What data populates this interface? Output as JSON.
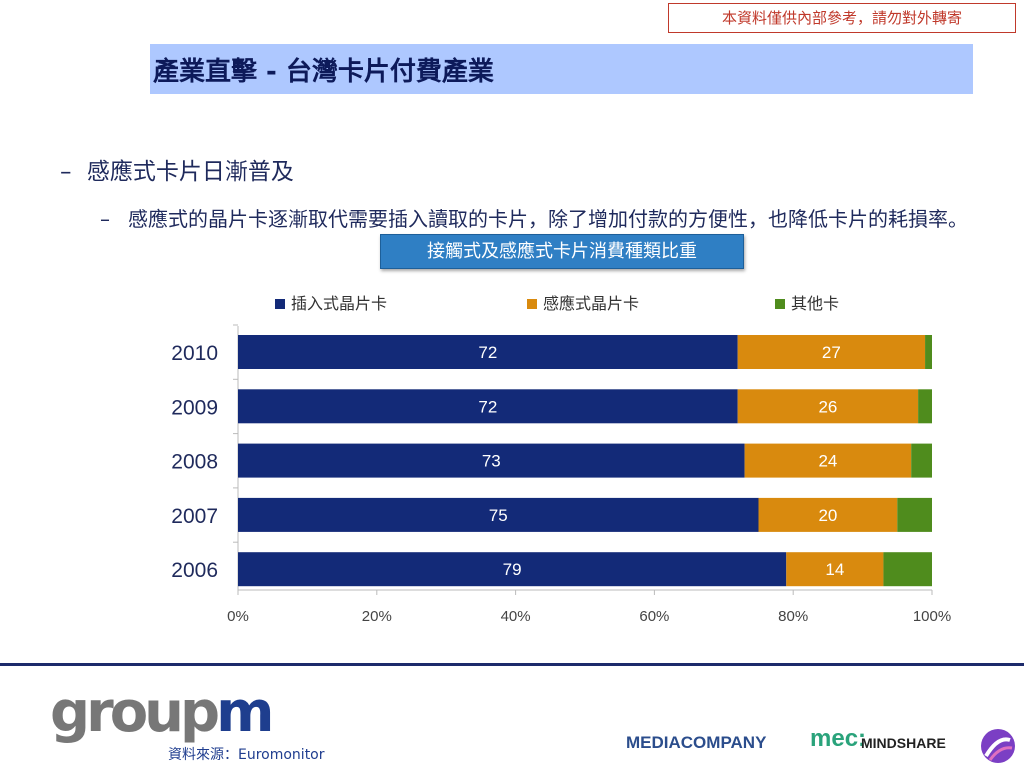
{
  "confidential_notice": "本資料僅供內部參考，請勿對外轉寄",
  "title": "產業直擊 - 台灣卡片付費產業",
  "bullet_level1": {
    "dash": "–",
    "text": "感應式卡片日漸普及"
  },
  "bullet_level2": {
    "dash": "–",
    "text": "感應式的晶片卡逐漸取代需要插入讀取的卡片，除了增加付款的方便性，也降低卡片的耗損率。"
  },
  "callout_label": "接觸式及感應式卡片消費種類比重",
  "colors": {
    "insert": "#132a78",
    "contactless": "#d98a0e",
    "other": "#4f8c1d",
    "title_bg": "#aec8ff",
    "callout_bg": "#2f7fc4"
  },
  "chart_data": {
    "type": "bar",
    "orientation": "horizontal",
    "stacked": true,
    "percent_stacked": true,
    "categories": [
      "2010",
      "2009",
      "2008",
      "2007",
      "2006"
    ],
    "series": [
      {
        "name": "插入式晶片卡",
        "values": [
          72,
          72,
          73,
          75,
          79
        ],
        "color": "#132a78",
        "label_color": "#ffffff"
      },
      {
        "name": "感應式晶片卡",
        "values": [
          27,
          26,
          24,
          20,
          14
        ],
        "color": "#d98a0e",
        "label_color": "#ffffff"
      },
      {
        "name": "其他卡",
        "values": [
          1,
          2,
          3,
          5,
          7
        ],
        "color": "#4f8c1d",
        "label_color": "#ffffff",
        "labels_hidden": true
      }
    ],
    "x_ticks": [
      "0%",
      "20%",
      "40%",
      "60%",
      "80%",
      "100%"
    ],
    "xlim": [
      0,
      100
    ],
    "legend_position": "top",
    "grid": false
  },
  "footer": {
    "groupm_logo_text": {
      "grey": "group",
      "blue": "m"
    },
    "source": "資料來源：Euromonitor",
    "mediacompany": "MEDIACOMPANY",
    "mec": "mec:",
    "mindshare": "MINDSHARE"
  }
}
